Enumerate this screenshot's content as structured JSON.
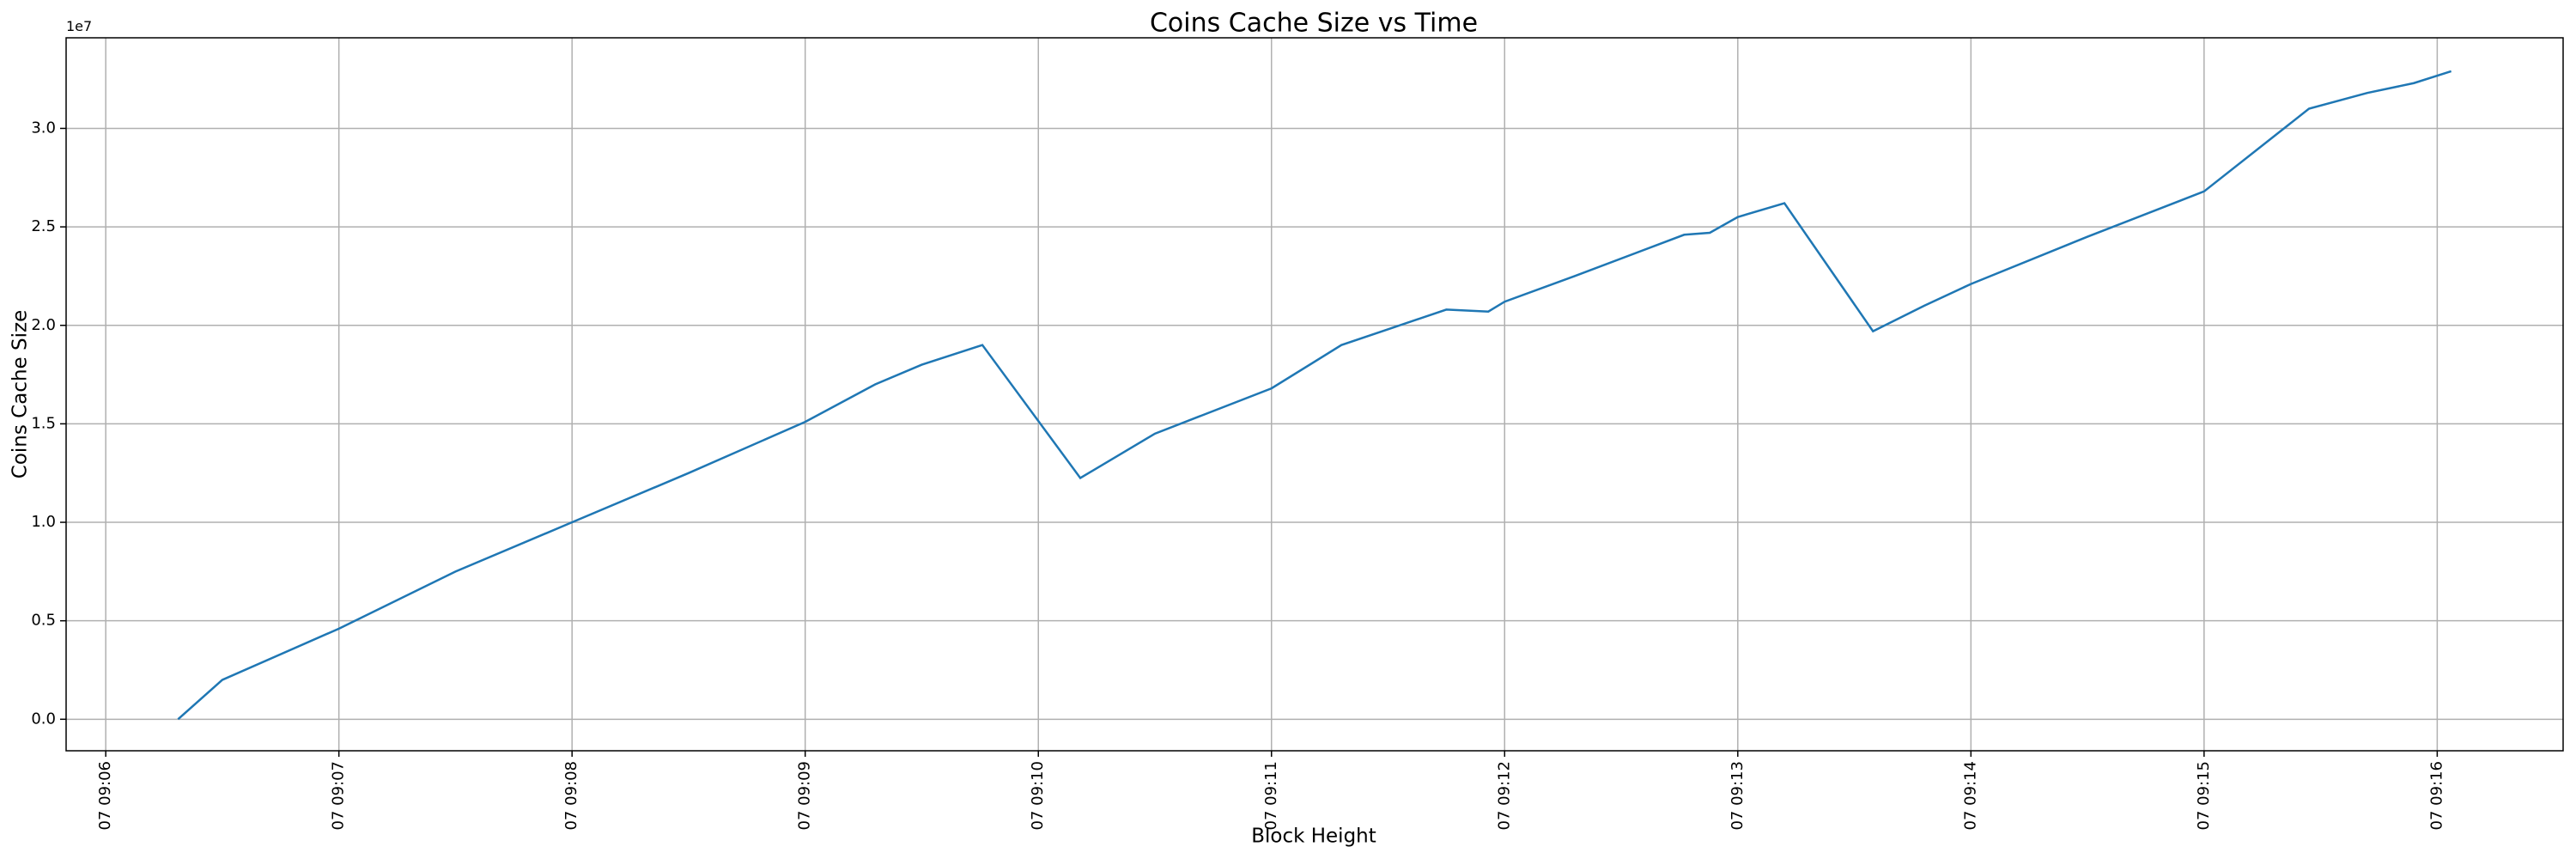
{
  "chart_data": {
    "type": "line",
    "title": "Coins Cache Size vs Time",
    "xlabel": "Block Height",
    "ylabel": "Coins Cache Size",
    "y_offset_label": "1e7",
    "grid": true,
    "x": [
      546.31,
      546.5,
      547,
      547.5,
      548,
      548.5,
      549,
      549.3,
      549.5,
      549.76,
      550.18,
      550.5,
      551,
      551.3,
      551.75,
      551.93,
      552,
      552.3,
      552.77,
      552.88,
      553,
      553.2,
      553.58,
      553.8,
      554,
      554.5,
      555,
      555.45,
      555.7,
      555.9,
      556.06
    ],
    "series": [
      {
        "name": "Coins Cache Size",
        "color": "#1f77b4",
        "values": [
          0,
          0.2,
          0.46,
          0.75,
          1.0,
          1.25,
          1.51,
          1.7,
          1.8,
          1.9,
          1.225,
          1.45,
          1.68,
          1.9,
          2.08,
          2.07,
          2.12,
          2.25,
          2.46,
          2.47,
          2.55,
          2.62,
          1.97,
          2.1,
          2.21,
          2.45,
          2.68,
          3.1,
          3.18,
          3.23,
          3.29
        ]
      }
    ],
    "xlim": [
      545.83,
      556.54
    ],
    "xticks": [
      {
        "value": 546,
        "label": "07 09:06"
      },
      {
        "value": 547,
        "label": "07 09:07"
      },
      {
        "value": 548,
        "label": "07 09:08"
      },
      {
        "value": 549,
        "label": "07 09:09"
      },
      {
        "value": 550,
        "label": "07 09:10"
      },
      {
        "value": 551,
        "label": "07 09:11"
      },
      {
        "value": 552,
        "label": "07 09:12"
      },
      {
        "value": 553,
        "label": "07 09:13"
      },
      {
        "value": 554,
        "label": "07 09:14"
      },
      {
        "value": 555,
        "label": "07 09:15"
      },
      {
        "value": 556,
        "label": "07 09:16"
      }
    ],
    "ylim": [
      -0.16,
      3.46
    ],
    "yticks": [
      {
        "value": 0,
        "label": "0.0"
      },
      0.5,
      {
        "value": 1,
        "label": "1.0"
      },
      1.5,
      {
        "value": 2,
        "label": "2.0"
      },
      2.5,
      {
        "value": 3,
        "label": "3.0"
      }
    ]
  }
}
